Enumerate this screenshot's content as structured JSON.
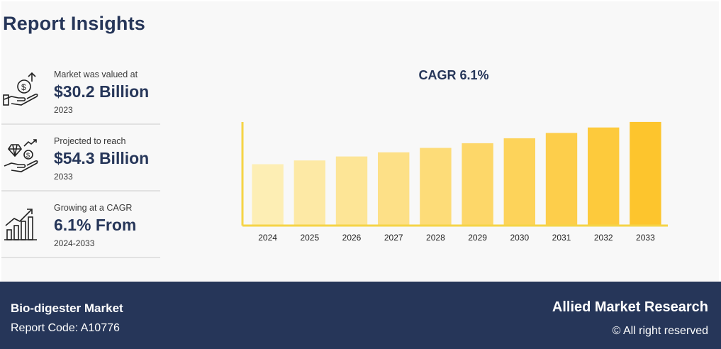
{
  "header": {
    "title": "Report Insights"
  },
  "stats": [
    {
      "label": "Market was valued at",
      "value": "$30.2 Billion",
      "sub": "2023",
      "icon": "money-hand-growth-icon"
    },
    {
      "label": "Projected to reach",
      "value": "$54.3 Billion",
      "sub": "2033",
      "icon": "diamond-coin-hand-icon"
    },
    {
      "label": "Growing at a CAGR",
      "value": "6.1% From",
      "sub": "2024-2033",
      "icon": "bar-chart-growth-icon"
    }
  ],
  "chart_data": {
    "type": "bar",
    "title": "CAGR 6.1%",
    "categories": [
      "2024",
      "2025",
      "2026",
      "2027",
      "2028",
      "2029",
      "2030",
      "2031",
      "2032",
      "2033"
    ],
    "values": [
      32.0,
      34.0,
      36.1,
      38.3,
      40.6,
      43.1,
      45.7,
      48.5,
      51.4,
      54.3
    ],
    "ylim": [
      0,
      70
    ],
    "xlabel": "",
    "ylabel": "",
    "grid": false,
    "colors": [
      "#fdeeb4",
      "#fde9a5",
      "#fde596",
      "#fde087",
      "#fddc78",
      "#fdd769",
      "#fdd35a",
      "#fdce4b",
      "#fdca3c",
      "#fdc52d"
    ],
    "axis_color": "#f5d447"
  },
  "footer": {
    "market": "Bio-digester Market",
    "code": "Report Code: A10776",
    "brand": "Allied Market Research",
    "rights": "© All right reserved"
  }
}
